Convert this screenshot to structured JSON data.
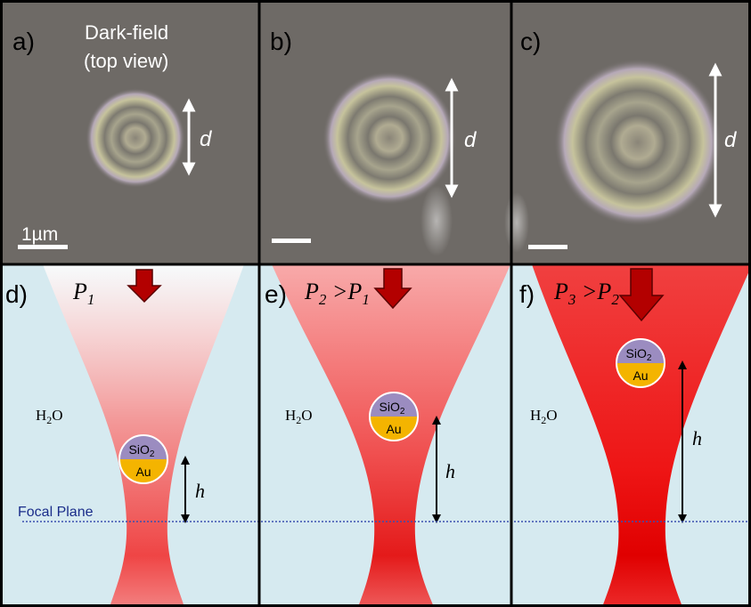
{
  "top_row": {
    "panel_a": {
      "letter": "a)",
      "caption_line1": "Dark-field",
      "caption_line2": "(top view)",
      "dimension_label": "d",
      "scalebar_label": "1µm"
    },
    "panel_b": {
      "letter": "b)",
      "dimension_label": "d"
    },
    "panel_c": {
      "letter": "c)",
      "dimension_label": "d"
    }
  },
  "bottom_row": {
    "common": {
      "medium_label": "H",
      "medium_sub": "2",
      "medium_tail": "O",
      "particle_top_label": "SiO",
      "particle_top_sub": "2",
      "particle_bottom_label": "Au",
      "height_label": "h",
      "focal_plane_label": "Focal Plane"
    },
    "panel_d": {
      "letter": "d)",
      "power_main": "P",
      "power_sub": "1"
    },
    "panel_e": {
      "letter": "e)",
      "power_main": "P",
      "power_sub": "2",
      "power_rel": " >P",
      "power_rel_sub": "1"
    },
    "panel_f": {
      "letter": "f)",
      "power_main": "P",
      "power_sub": "3",
      "power_rel": " >P",
      "power_rel_sub": "2"
    }
  },
  "colors": {
    "darkfield_background": "#6e6a66",
    "water": "#d6eaf0",
    "laser": "#ff1a1a",
    "silica": "#9b8cc0",
    "gold": "#f4b400",
    "arrow": "#b30000",
    "focal_line": "#3a4fb0"
  }
}
